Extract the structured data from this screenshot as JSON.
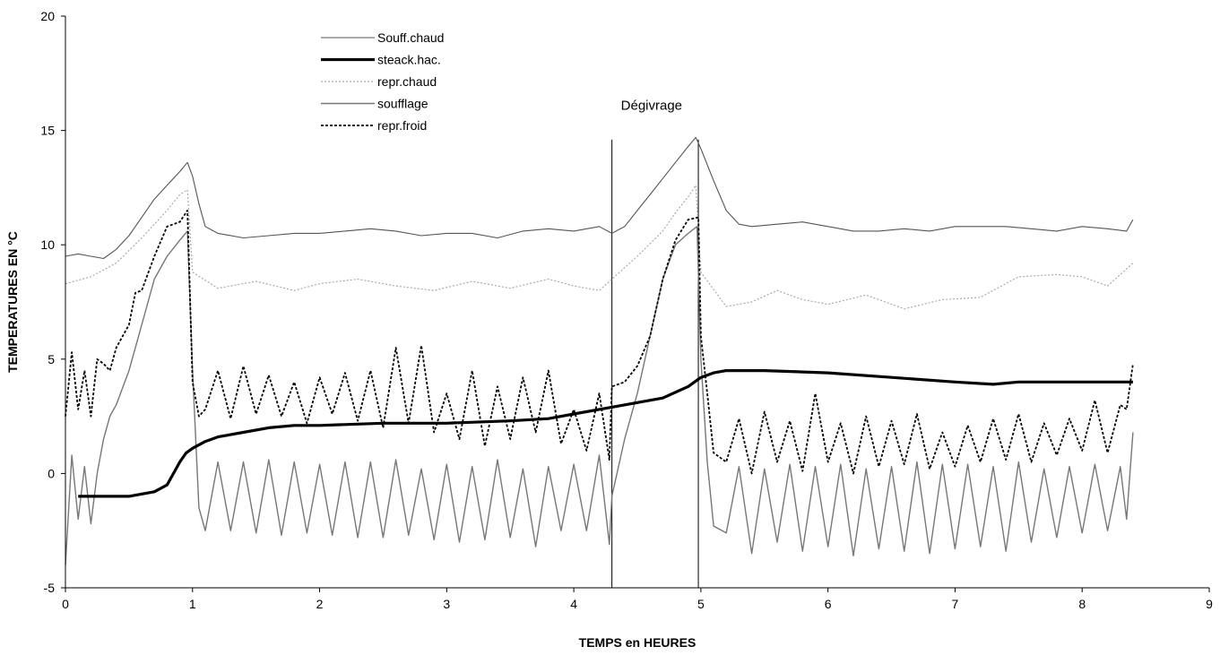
{
  "chart_data": {
    "type": "line",
    "title": "",
    "xlabel": "TEMPS en HEURES",
    "ylabel": "TEMPERATURES EN °C",
    "xlim": [
      0,
      9
    ],
    "ylim": [
      -5,
      20
    ],
    "xticks": [
      "0",
      "1",
      "2",
      "3",
      "4",
      "5",
      "6",
      "7",
      "8",
      "9"
    ],
    "yticks": [
      "-5",
      "0",
      "5",
      "10",
      "15",
      "20"
    ],
    "grid": false,
    "legend_placement": "top-left",
    "annotations": [
      {
        "text": "Dégivrage",
        "x": 4.3
      }
    ],
    "vlines": [
      4.3,
      4.98
    ],
    "series": [
      {
        "name": "Souff.chaud",
        "style": "thin-solid",
        "color": "#555555",
        "x": [
          0.0,
          0.1,
          0.2,
          0.3,
          0.4,
          0.5,
          0.6,
          0.7,
          0.8,
          0.9,
          0.96,
          1.0,
          1.05,
          1.1,
          1.2,
          1.4,
          1.6,
          1.8,
          2.0,
          2.2,
          2.4,
          2.6,
          2.8,
          3.0,
          3.2,
          3.4,
          3.6,
          3.8,
          4.0,
          4.2,
          4.3,
          4.4,
          4.5,
          4.6,
          4.7,
          4.8,
          4.9,
          4.96,
          5.0,
          5.1,
          5.2,
          5.3,
          5.4,
          5.6,
          5.8,
          6.0,
          6.2,
          6.4,
          6.6,
          6.8,
          7.0,
          7.2,
          7.4,
          7.6,
          7.8,
          8.0,
          8.2,
          8.35,
          8.4
        ],
        "y": [
          9.5,
          9.6,
          9.5,
          9.4,
          9.8,
          10.4,
          11.2,
          12.0,
          12.6,
          13.2,
          13.6,
          13.0,
          11.8,
          10.8,
          10.5,
          10.3,
          10.4,
          10.5,
          10.5,
          10.6,
          10.7,
          10.6,
          10.4,
          10.5,
          10.5,
          10.3,
          10.6,
          10.7,
          10.6,
          10.8,
          10.5,
          10.8,
          11.5,
          12.2,
          12.9,
          13.6,
          14.3,
          14.7,
          14.2,
          12.8,
          11.5,
          10.9,
          10.8,
          10.9,
          11.0,
          10.8,
          10.6,
          10.6,
          10.7,
          10.6,
          10.8,
          10.8,
          10.8,
          10.7,
          10.6,
          10.8,
          10.7,
          10.6,
          11.1
        ]
      },
      {
        "name": "steack.hac.",
        "style": "thick-solid",
        "color": "#000000",
        "x": [
          0.1,
          0.3,
          0.5,
          0.7,
          0.8,
          0.85,
          0.9,
          0.95,
          1.0,
          1.1,
          1.2,
          1.4,
          1.6,
          1.8,
          2.0,
          2.5,
          3.0,
          3.5,
          3.8,
          4.0,
          4.2,
          4.3,
          4.5,
          4.7,
          4.9,
          5.0,
          5.1,
          5.2,
          5.5,
          6.0,
          6.5,
          7.0,
          7.3,
          7.5,
          8.0,
          8.4
        ],
        "y": [
          -1.0,
          -1.0,
          -1.0,
          -0.8,
          -0.5,
          0.0,
          0.5,
          0.9,
          1.1,
          1.4,
          1.6,
          1.8,
          2.0,
          2.1,
          2.1,
          2.2,
          2.2,
          2.3,
          2.4,
          2.6,
          2.8,
          2.9,
          3.1,
          3.3,
          3.8,
          4.2,
          4.4,
          4.5,
          4.5,
          4.4,
          4.2,
          4.0,
          3.9,
          4.0,
          4.0,
          4.0
        ]
      },
      {
        "name": "repr.chaud",
        "style": "light-dotted",
        "color": "#aaaaaa",
        "x": [
          0.0,
          0.2,
          0.4,
          0.6,
          0.8,
          0.9,
          0.96,
          1.0,
          1.2,
          1.5,
          1.8,
          2.0,
          2.3,
          2.6,
          2.9,
          3.2,
          3.5,
          3.8,
          4.0,
          4.2,
          4.3,
          4.5,
          4.7,
          4.8,
          4.9,
          4.96,
          5.0,
          5.2,
          5.4,
          5.6,
          5.8,
          6.0,
          6.3,
          6.6,
          6.9,
          7.2,
          7.5,
          7.8,
          8.0,
          8.2,
          8.4
        ],
        "y": [
          8.3,
          8.6,
          9.2,
          10.3,
          11.5,
          12.2,
          12.4,
          8.8,
          8.1,
          8.4,
          8.0,
          8.3,
          8.5,
          8.2,
          8.0,
          8.4,
          8.1,
          8.5,
          8.2,
          8.0,
          8.5,
          9.5,
          10.6,
          11.4,
          12.1,
          12.6,
          8.8,
          7.3,
          7.5,
          8.0,
          7.6,
          7.4,
          7.8,
          7.2,
          7.6,
          7.7,
          8.6,
          8.7,
          8.6,
          8.2,
          9.2
        ]
      },
      {
        "name": "soufflage",
        "style": "gray-oscillating",
        "color": "#777777",
        "x": [
          0.0,
          0.05,
          0.1,
          0.15,
          0.2,
          0.25,
          0.3,
          0.35,
          0.4,
          0.5,
          0.6,
          0.7,
          0.8,
          0.9,
          0.96,
          1.0,
          1.05,
          1.1,
          1.2,
          1.3,
          1.4,
          1.5,
          1.6,
          1.7,
          1.8,
          1.9,
          2.0,
          2.1,
          2.2,
          2.3,
          2.4,
          2.5,
          2.6,
          2.7,
          2.8,
          2.9,
          3.0,
          3.1,
          3.2,
          3.3,
          3.4,
          3.5,
          3.6,
          3.7,
          3.8,
          3.9,
          4.0,
          4.1,
          4.2,
          4.28,
          4.3,
          4.4,
          4.5,
          4.6,
          4.7,
          4.8,
          4.9,
          4.97,
          5.0,
          5.05,
          5.1,
          5.2,
          5.3,
          5.4,
          5.5,
          5.6,
          5.7,
          5.8,
          5.9,
          6.0,
          6.1,
          6.2,
          6.3,
          6.4,
          6.5,
          6.6,
          6.7,
          6.8,
          6.9,
          7.0,
          7.1,
          7.2,
          7.3,
          7.4,
          7.5,
          7.6,
          7.7,
          7.8,
          7.9,
          8.0,
          8.1,
          8.2,
          8.3,
          8.35,
          8.4
        ],
        "y": [
          -4.0,
          0.8,
          -2.0,
          0.3,
          -2.2,
          0.0,
          1.5,
          2.5,
          3.0,
          4.5,
          6.5,
          8.5,
          9.5,
          10.2,
          10.6,
          4.5,
          -1.5,
          -2.5,
          0.5,
          -2.5,
          0.5,
          -2.6,
          0.6,
          -2.7,
          0.5,
          -2.6,
          0.4,
          -2.7,
          0.5,
          -2.8,
          0.5,
          -2.8,
          0.6,
          -2.7,
          0.2,
          -2.9,
          0.4,
          -3.0,
          0.3,
          -2.9,
          0.6,
          -2.8,
          0.2,
          -3.2,
          0.3,
          -2.5,
          0.4,
          -2.5,
          0.8,
          -3.1,
          -1.0,
          1.5,
          3.5,
          6.0,
          8.5,
          10.0,
          10.5,
          10.8,
          5.0,
          0.5,
          -2.3,
          -2.6,
          0.3,
          -3.5,
          0.2,
          -3.0,
          0.4,
          -3.4,
          0.3,
          -3.2,
          0.4,
          -3.6,
          0.2,
          -3.3,
          0.3,
          -3.4,
          0.5,
          -3.5,
          0.4,
          -3.3,
          0.4,
          -3.2,
          0.3,
          -3.4,
          0.5,
          -3.0,
          0.2,
          -2.8,
          0.3,
          -2.6,
          0.4,
          -2.5,
          0.3,
          -2.0,
          1.8
        ]
      },
      {
        "name": "repr.froid",
        "style": "dashed",
        "color": "#000000",
        "x": [
          0.0,
          0.05,
          0.1,
          0.15,
          0.2,
          0.25,
          0.3,
          0.35,
          0.4,
          0.5,
          0.55,
          0.6,
          0.7,
          0.8,
          0.9,
          0.96,
          1.0,
          1.05,
          1.1,
          1.2,
          1.3,
          1.4,
          1.5,
          1.6,
          1.7,
          1.8,
          1.9,
          2.0,
          2.1,
          2.2,
          2.3,
          2.4,
          2.5,
          2.6,
          2.7,
          2.8,
          2.9,
          3.0,
          3.1,
          3.2,
          3.3,
          3.4,
          3.5,
          3.6,
          3.7,
          3.8,
          3.9,
          4.0,
          4.1,
          4.2,
          4.28,
          4.3,
          4.4,
          4.5,
          4.6,
          4.7,
          4.8,
          4.9,
          4.98,
          5.0,
          5.05,
          5.1,
          5.2,
          5.3,
          5.4,
          5.5,
          5.6,
          5.7,
          5.8,
          5.9,
          6.0,
          6.1,
          6.2,
          6.3,
          6.4,
          6.5,
          6.6,
          6.7,
          6.8,
          6.9,
          7.0,
          7.1,
          7.2,
          7.3,
          7.4,
          7.5,
          7.6,
          7.7,
          7.8,
          7.9,
          8.0,
          8.1,
          8.2,
          8.3,
          8.35,
          8.4
        ],
        "y": [
          2.5,
          5.3,
          2.8,
          4.5,
          2.5,
          5.0,
          4.8,
          4.5,
          5.5,
          6.5,
          7.9,
          8.0,
          9.5,
          10.8,
          11.0,
          11.5,
          4.0,
          2.5,
          2.8,
          4.5,
          2.4,
          4.7,
          2.6,
          4.3,
          2.5,
          4.0,
          2.2,
          4.2,
          2.6,
          4.4,
          2.3,
          4.5,
          2.0,
          5.5,
          2.2,
          5.6,
          1.8,
          3.5,
          1.5,
          4.5,
          1.2,
          3.8,
          1.5,
          4.2,
          1.8,
          4.5,
          1.3,
          2.8,
          1.0,
          3.5,
          0.6,
          3.8,
          4.0,
          4.7,
          6.0,
          8.5,
          10.2,
          11.1,
          11.2,
          6.0,
          3.5,
          0.9,
          0.5,
          2.4,
          0.0,
          2.7,
          0.5,
          2.3,
          0.1,
          3.5,
          0.5,
          2.2,
          0.0,
          2.5,
          0.3,
          2.3,
          0.4,
          2.6,
          0.2,
          1.8,
          0.3,
          2.1,
          0.5,
          2.4,
          0.6,
          2.6,
          0.5,
          2.2,
          0.8,
          2.4,
          1.0,
          3.2,
          0.9,
          3.0,
          2.8,
          4.8
        ]
      }
    ]
  }
}
